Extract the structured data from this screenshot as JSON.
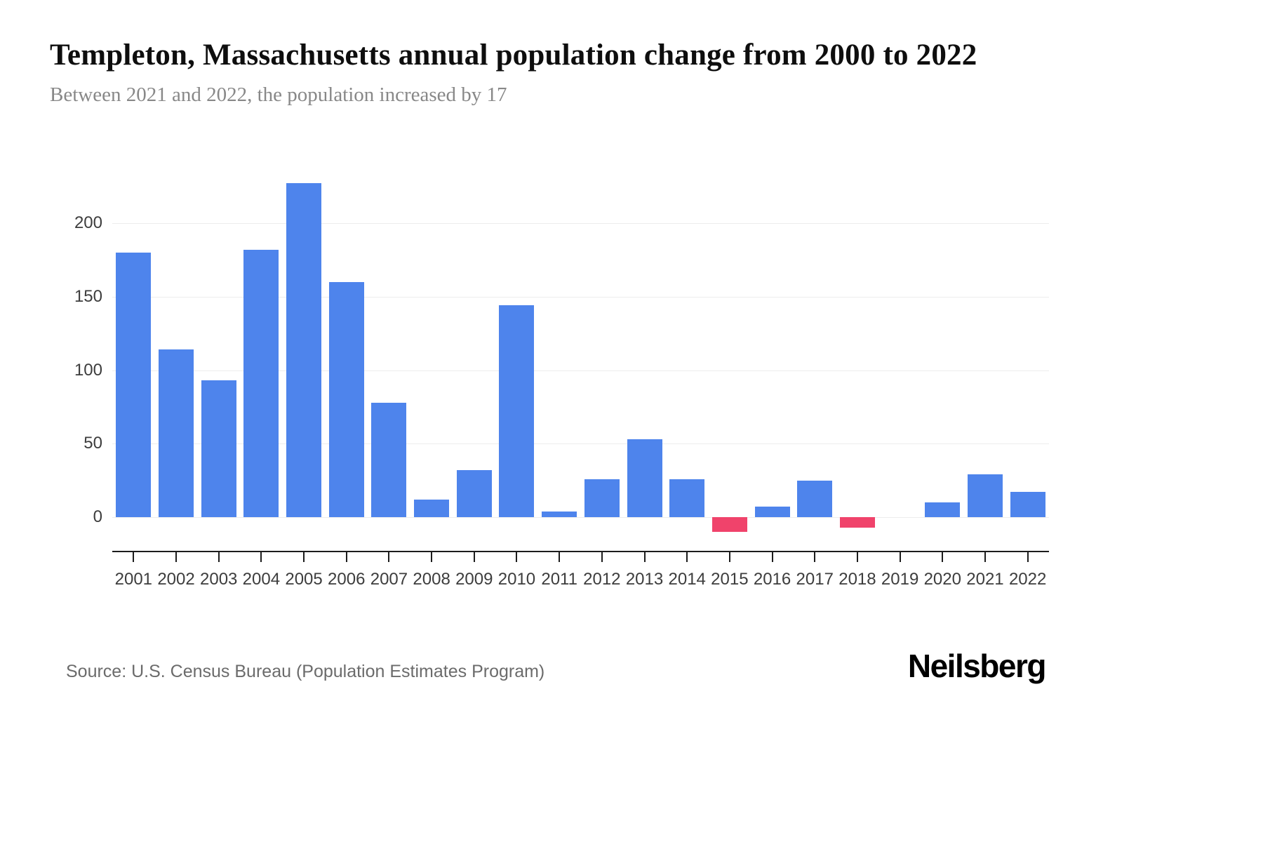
{
  "header": {
    "title": "Templeton, Massachusetts annual population change from 2000 to 2022",
    "subtitle": "Between 2021 and 2022, the population increased by 17"
  },
  "footer": {
    "source": "Source: U.S. Census Bureau (Population Estimates Program)",
    "brand": "Neilsberg"
  },
  "chart_data": {
    "type": "bar",
    "title": "Templeton, Massachusetts annual population change from 2000 to 2022",
    "subtitle": "Between 2021 and 2022, the population increased by 17",
    "categories": [
      "2001",
      "2002",
      "2003",
      "2004",
      "2005",
      "2006",
      "2007",
      "2008",
      "2009",
      "2010",
      "2011",
      "2012",
      "2013",
      "2014",
      "2015",
      "2016",
      "2017",
      "2018",
      "2019",
      "2020",
      "2021",
      "2022"
    ],
    "values": [
      180,
      114,
      93,
      182,
      227,
      160,
      78,
      12,
      32,
      144,
      4,
      26,
      53,
      26,
      -10,
      7,
      25,
      -7,
      0,
      10,
      29,
      17
    ],
    "xlabel": "",
    "ylabel": "",
    "yticks": [
      0,
      50,
      100,
      150,
      200
    ],
    "ylim": [
      -25,
      242
    ],
    "grid": "horizontal",
    "legend": "none",
    "colors": {
      "positive": "#4e84ec",
      "negative": "#f0436b",
      "gridline": "#ededed",
      "axis": "#1c1c1c"
    }
  }
}
